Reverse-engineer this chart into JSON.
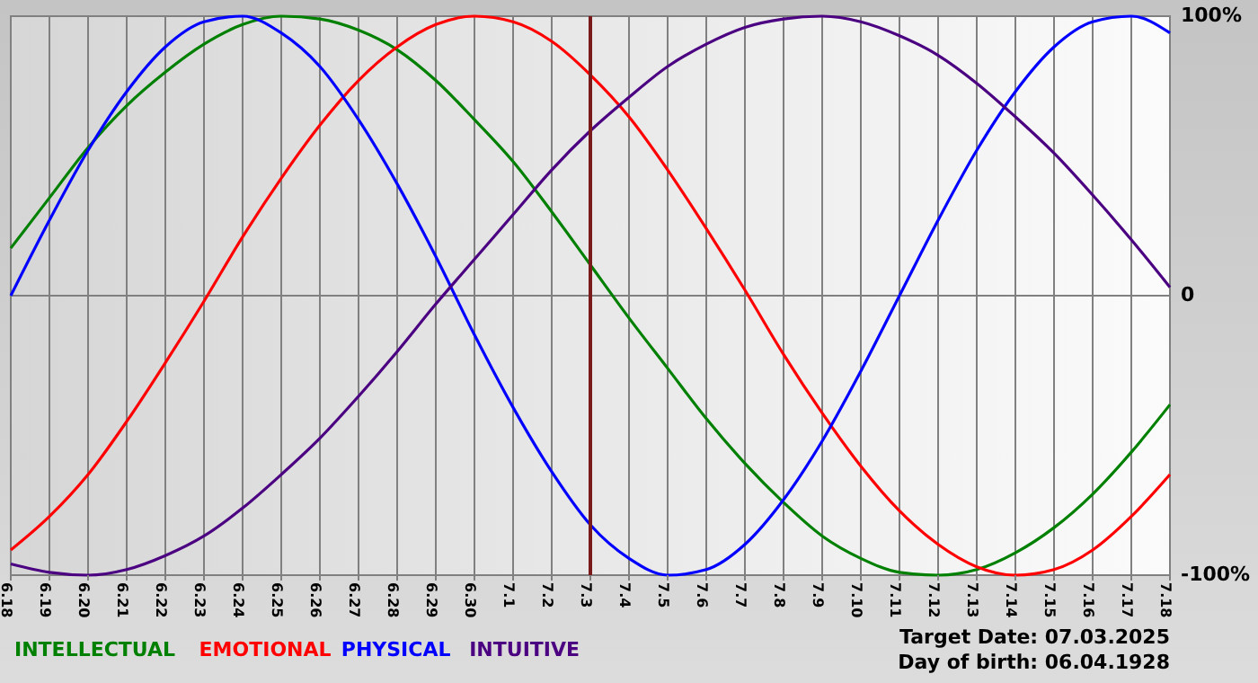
{
  "chart_data": {
    "type": "line",
    "categories": [
      "6.18",
      "6.19",
      "6.20",
      "6.21",
      "6.22",
      "6.23",
      "6.24",
      "6.25",
      "6.26",
      "6.27",
      "6.28",
      "6.29",
      "6.30",
      "7.1",
      "7.2",
      "7.3",
      "7.4",
      "7.5",
      "7.6",
      "7.7",
      "7.8",
      "7.9",
      "7.10",
      "7.11",
      "7.12",
      "7.13",
      "7.14",
      "7.15",
      "7.16",
      "7.17",
      "7.18"
    ],
    "series": [
      {
        "name": "INTELLECTUAL",
        "color": "#008000",
        "values": [
          17,
          35,
          53,
          68,
          80,
          90,
          97,
          100,
          99,
          95,
          88,
          77,
          63,
          48,
          30,
          11,
          -8,
          -26,
          -44,
          -60,
          -74,
          -86,
          -94,
          -99,
          -100,
          -98,
          -92,
          -83,
          -71,
          -56,
          -39
        ]
      },
      {
        "name": "EMOTIONAL",
        "color": "#ff0000",
        "values": [
          -91,
          -79,
          -64,
          -45,
          -24,
          -2,
          21,
          42,
          61,
          77,
          89,
          97,
          100,
          98,
          91,
          79,
          64,
          45,
          24,
          2,
          -21,
          -42,
          -61,
          -77,
          -89,
          -97,
          -100,
          -98,
          -91,
          -79,
          -64
        ]
      },
      {
        "name": "PHYSICAL",
        "color": "#0000ff",
        "values": [
          0,
          27,
          52,
          73,
          89,
          98,
          100,
          94,
          82,
          63,
          40,
          14,
          -14,
          -40,
          -63,
          -82,
          -94,
          -100,
          -98,
          -89,
          -73,
          -52,
          -27,
          0,
          27,
          52,
          73,
          89,
          98,
          100,
          94
        ]
      },
      {
        "name": "INTUITIVE",
        "color": "#4b0082",
        "values": [
          -96,
          -99,
          -100,
          -98,
          -93,
          -86,
          -76,
          -64,
          -51,
          -36,
          -20,
          -3,
          13,
          29,
          45,
          59,
          71,
          82,
          90,
          96,
          99,
          100,
          98,
          93,
          86,
          76,
          64,
          51,
          36,
          20,
          3
        ]
      }
    ],
    "ylim": [
      -100,
      100
    ],
    "yticks": [
      {
        "value": 100,
        "label": "100%"
      },
      0,
      {
        "value": -100,
        "label": "-100%"
      }
    ],
    "grid": true,
    "legend": "bottom",
    "marker": "none",
    "line_style": "solid",
    "ref_lines": [
      {
        "axis": "x",
        "value": "7.3",
        "color": "#7b1a1a"
      }
    ],
    "annotations": [
      "Target Date: 07.03.2025",
      "Day of birth: 06.04.1928"
    ]
  }
}
